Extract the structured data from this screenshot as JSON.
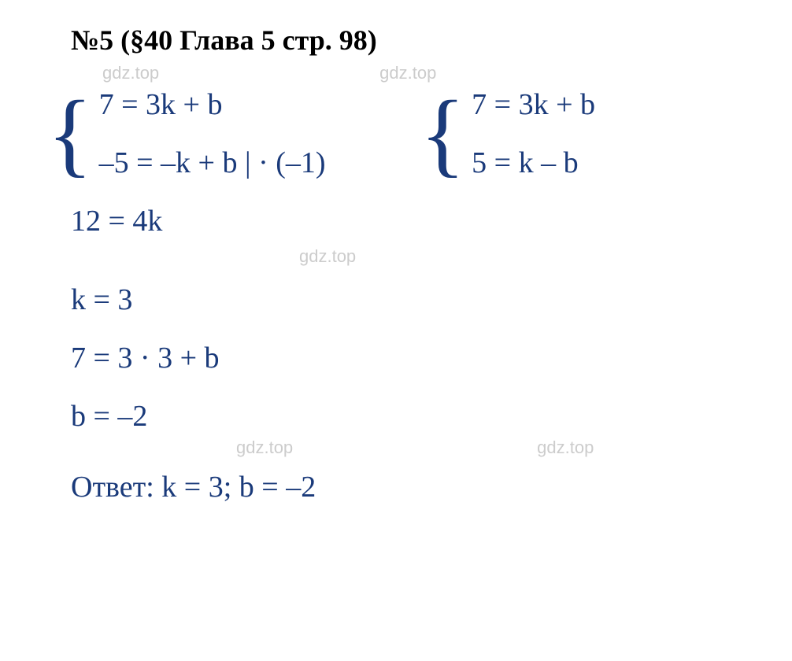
{
  "title": "№5 (§40 Глава 5  стр. 98)",
  "watermark": "gdz.top",
  "system1": {
    "eq1": "7 = 3k + b",
    "eq2": "–5 = –k + b | · (–1)"
  },
  "system2": {
    "eq1": "7 = 3k + b",
    "eq2": "5 = k – b"
  },
  "steps": {
    "s1": "12 = 4k",
    "s2": "k = 3",
    "s3": "7 = 3 · 3 + b",
    "s4": "b = –2"
  },
  "answer": "Ответ: k = 3; b = –2",
  "colors": {
    "title_color": "#000000",
    "math_color": "#1a3a7a",
    "watermark_color": "#cccccc",
    "background": "#ffffff"
  },
  "typography": {
    "title_fontsize": 36,
    "title_weight": "bold",
    "math_fontsize": 38,
    "watermark_fontsize": 22,
    "font_family": "Times New Roman"
  }
}
